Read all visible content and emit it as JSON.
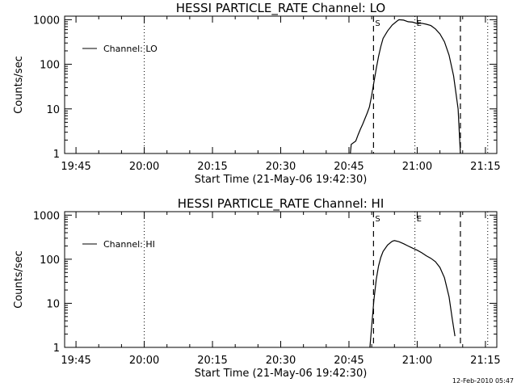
{
  "footer_stamp": "12-Feb-2010 05:47",
  "chart_data": [
    {
      "type": "line",
      "title": "HESSI PARTICLE_RATE Channel: LO",
      "xlabel": "Start Time (21-May-06 19:42:30)",
      "ylabel": "Counts/sec",
      "x_unit": "minutes since 19:42:30",
      "xlim": [
        0,
        95
      ],
      "ylim": [
        1,
        1200
      ],
      "yscale": "log",
      "grid": false,
      "legend_position": "top-left",
      "x_ticks": [
        {
          "label": "19:45",
          "x": 2.5
        },
        {
          "label": "20:00",
          "x": 17.5
        },
        {
          "label": "20:15",
          "x": 32.5
        },
        {
          "label": "20:30",
          "x": 47.5
        },
        {
          "label": "20:45",
          "x": 62.5
        },
        {
          "label": "21:00",
          "x": 77.5
        },
        {
          "label": "21:15",
          "x": 92.5
        }
      ],
      "y_ticks": [
        {
          "label": "1",
          "value": 1
        },
        {
          "label": "10",
          "value": 10
        },
        {
          "label": "100",
          "value": 100
        },
        {
          "label": "1000",
          "value": 1000
        }
      ],
      "markers": [
        {
          "style": "dotted",
          "x": 17.5,
          "label": ""
        },
        {
          "style": "dashed",
          "x": 67.9,
          "label": "S"
        },
        {
          "style": "dotted",
          "x": 77.0,
          "label": "E"
        },
        {
          "style": "dashed",
          "x": 87.0,
          "label": ""
        },
        {
          "style": "dotted",
          "x": 93.0,
          "label": ""
        }
      ],
      "series": [
        {
          "name": "Channel: LO",
          "points": [
            [
              62.8,
              1.0
            ],
            [
              63.0,
              1.6
            ],
            [
              64.0,
              1.9
            ],
            [
              64.5,
              2.6
            ],
            [
              65.0,
              3.5
            ],
            [
              65.5,
              4.5
            ],
            [
              66.0,
              6.0
            ],
            [
              66.5,
              8.0
            ],
            [
              67.0,
              11
            ],
            [
              67.5,
              20
            ],
            [
              68.0,
              40
            ],
            [
              68.5,
              80
            ],
            [
              69.0,
              150
            ],
            [
              69.5,
              250
            ],
            [
              70.0,
              380
            ],
            [
              71.0,
              560
            ],
            [
              72.0,
              760
            ],
            [
              73.0,
              920
            ],
            [
              73.5,
              1000
            ],
            [
              74.5,
              980
            ],
            [
              75.5,
              900
            ],
            [
              76.5,
              880
            ],
            [
              77.5,
              820
            ],
            [
              78.5,
              830
            ],
            [
              79.5,
              790
            ],
            [
              80.5,
              740
            ],
            [
              81.5,
              620
            ],
            [
              82.5,
              480
            ],
            [
              83.5,
              320
            ],
            [
              84.5,
              160
            ],
            [
              85.5,
              55
            ],
            [
              86.5,
              10
            ],
            [
              87.0,
              1.0
            ]
          ]
        }
      ]
    },
    {
      "type": "line",
      "title": "HESSI PARTICLE_RATE Channel: HI",
      "xlabel": "Start Time (21-May-06 19:42:30)",
      "ylabel": "Counts/sec",
      "x_unit": "minutes since 19:42:30",
      "xlim": [
        0,
        95
      ],
      "ylim": [
        1,
        1200
      ],
      "yscale": "log",
      "grid": false,
      "legend_position": "top-left",
      "x_ticks": [
        {
          "label": "19:45",
          "x": 2.5
        },
        {
          "label": "20:00",
          "x": 17.5
        },
        {
          "label": "20:15",
          "x": 32.5
        },
        {
          "label": "20:30",
          "x": 47.5
        },
        {
          "label": "20:45",
          "x": 62.5
        },
        {
          "label": "21:00",
          "x": 77.5
        },
        {
          "label": "21:15",
          "x": 92.5
        }
      ],
      "y_ticks": [
        {
          "label": "1",
          "value": 1
        },
        {
          "label": "10",
          "value": 10
        },
        {
          "label": "100",
          "value": 100
        },
        {
          "label": "1000",
          "value": 1000
        }
      ],
      "markers": [
        {
          "style": "dotted",
          "x": 17.5,
          "label": ""
        },
        {
          "style": "dashed",
          "x": 67.9,
          "label": "S"
        },
        {
          "style": "dotted",
          "x": 77.0,
          "label": "E"
        },
        {
          "style": "dashed",
          "x": 87.0,
          "label": ""
        },
        {
          "style": "dotted",
          "x": 93.0,
          "label": ""
        }
      ],
      "series": [
        {
          "name": "Channel: HI",
          "points": [
            [
              67.1,
              1.0
            ],
            [
              67.5,
              3.0
            ],
            [
              68.0,
              12
            ],
            [
              68.5,
              35
            ],
            [
              69.0,
              70
            ],
            [
              69.5,
              110
            ],
            [
              70.0,
              150
            ],
            [
              71.0,
              210
            ],
            [
              72.0,
              255
            ],
            [
              72.5,
              265
            ],
            [
              73.5,
              250
            ],
            [
              74.5,
              225
            ],
            [
              75.5,
              200
            ],
            [
              76.5,
              178
            ],
            [
              77.5,
              160
            ],
            [
              78.5,
              140
            ],
            [
              79.5,
              120
            ],
            [
              80.5,
              105
            ],
            [
              81.5,
              88
            ],
            [
              82.5,
              65
            ],
            [
              83.5,
              38
            ],
            [
              84.5,
              14
            ],
            [
              85.2,
              4.5
            ],
            [
              85.8,
              1.8
            ]
          ]
        }
      ]
    }
  ]
}
